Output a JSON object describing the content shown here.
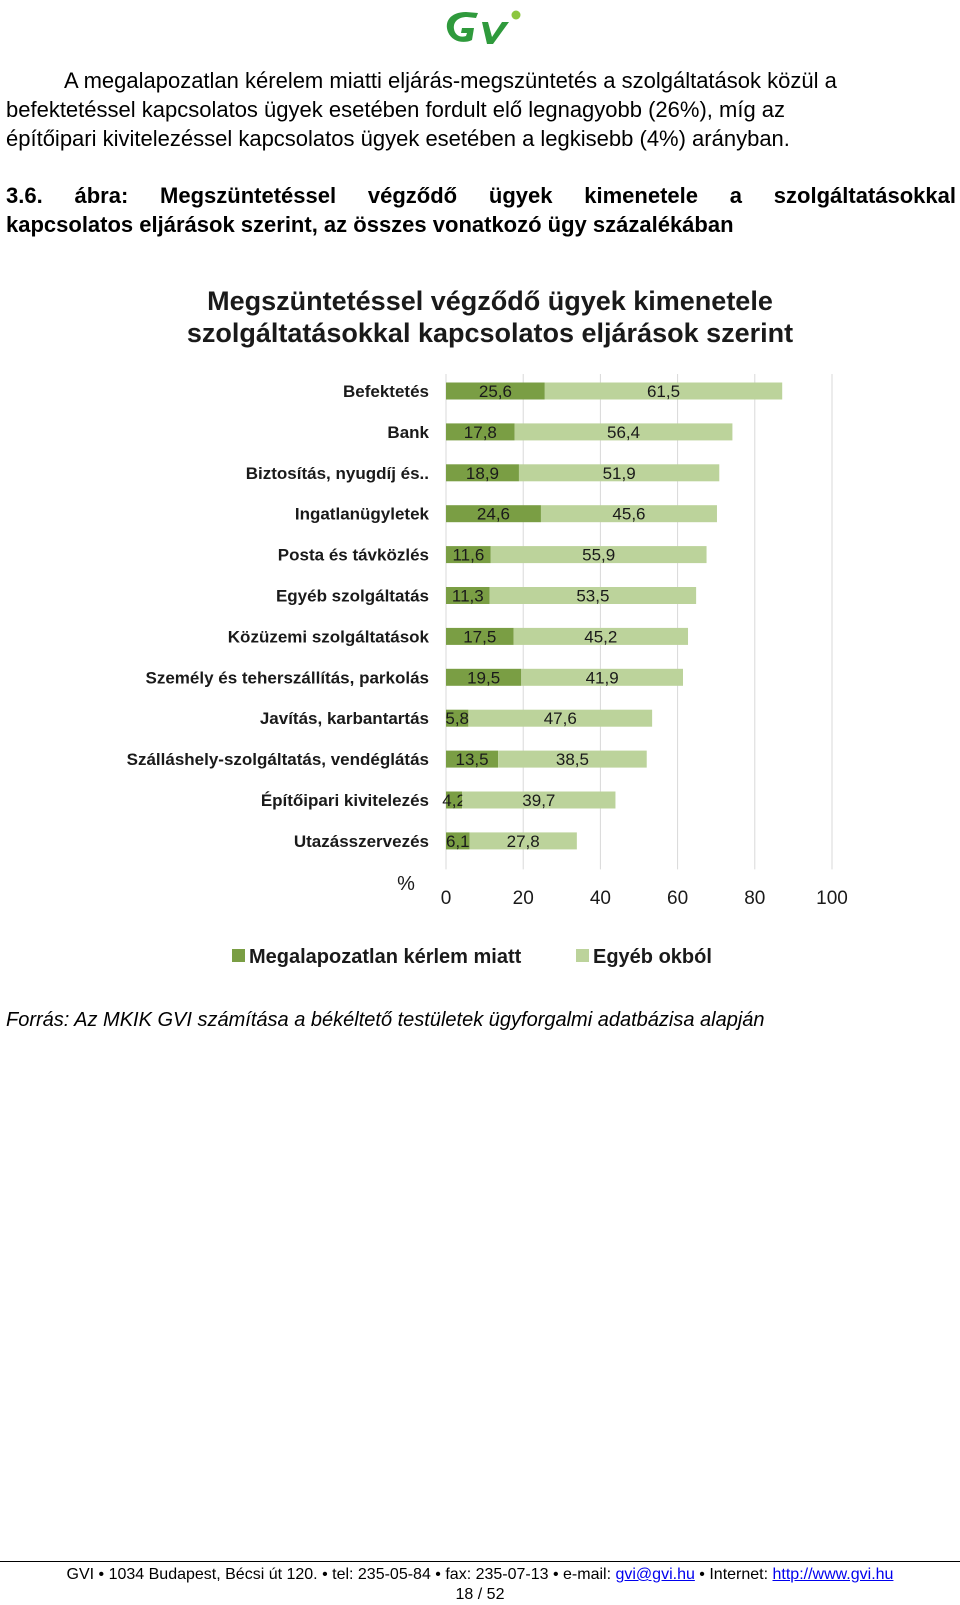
{
  "paragraph": {
    "lines": [
      "A megalapozatlan kérelem miatti eljárás-megszüntetés a szolgáltatások közül a",
      "befektetéssel kapcsolatos ügyek esetében fordult elő legnagyobb (26%), míg az",
      "építőipari kivitelezéssel kapcsolatos ügyek esetében a legkisebb (4%) arányban."
    ]
  },
  "caption": {
    "line1": "3.6. ábra: Megszüntetéssel végződő ügyek kimenetele a szolgáltatásokkal",
    "line2": "kapcsolatos eljárások szerint, az összes vonatkozó ügy százalékában"
  },
  "chart_data": {
    "type": "bar",
    "orientation": "horizontal",
    "stacked": true,
    "title": "Megszüntetéssel végződő ügyek kimenetele szolgáltatásokkal kapcsolatos eljárások szerint",
    "title_lines": [
      "Megszüntetéssel végződő ügyek kimenetele",
      "szolgáltatásokkal kapcsolatos eljárások szerint"
    ],
    "xlabel": "%",
    "xlim": [
      0,
      100
    ],
    "xticks": [
      0,
      20,
      40,
      60,
      80,
      100
    ],
    "grid": "vertical",
    "legend_position": "bottom",
    "categories": [
      "Befektetés",
      "Bank",
      "Biztosítás, nyugdíj és..",
      "Ingatlanügyletek",
      "Posta és távközlés",
      "Egyéb szolgáltatás",
      "Közüzemi szolgáltatások",
      "Személy és teherszállítás, parkolás",
      "Javítás, karbantartás",
      "Szálláshely-szolgáltatás, vendéglátás",
      "Építőipari kivitelezés",
      "Utazásszervezés"
    ],
    "series": [
      {
        "name": "Megalapozatlan kérlem miatt",
        "color": "#7a9e44",
        "values": [
          25.6,
          17.8,
          18.9,
          24.6,
          11.6,
          11.3,
          17.5,
          19.5,
          5.8,
          13.5,
          4.2,
          6.1
        ],
        "labels": [
          "25,6",
          "17,8",
          "18,9",
          "24,6",
          "11,6",
          "11,3",
          "17,5",
          "19,5",
          "5,8",
          "13,5",
          "4,2",
          "6,1"
        ]
      },
      {
        "name": "Egyéb okból",
        "color": "#bcd39b",
        "values": [
          61.5,
          56.4,
          51.9,
          45.6,
          55.9,
          53.5,
          45.2,
          41.9,
          47.6,
          38.5,
          39.7,
          27.8
        ],
        "labels": [
          "61,5",
          "56,4",
          "51,9",
          "45,6",
          "55,9",
          "53,5",
          "45,2",
          "41,9",
          "47,6",
          "38,5",
          "39,7",
          "27,8"
        ]
      }
    ]
  },
  "source": "Forrás: Az MKIK GVI számítása a békéltető testületek ügyforgalmi adatbázisa alapján",
  "footer": {
    "prefix": "GVI • 1034 Budapest, Bécsi út 120. • tel: 235-05-84 • fax: 235-07-13 • e-mail: ",
    "email": "gvi@gvi.hu",
    "middle": " • Internet: ",
    "url": "http://www.gvi.hu",
    "page": "18 / 52"
  },
  "colors": {
    "logo_green": "#2f9a3c",
    "dark_bar": "#7a9e44",
    "light_bar": "#bcd39b"
  }
}
